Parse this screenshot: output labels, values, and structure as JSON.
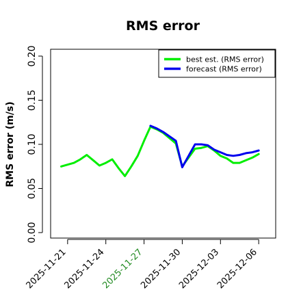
{
  "chart_data": {
    "type": "line",
    "title": "RMS error",
    "xlabel": "",
    "ylabel": "RMS error (m/s)",
    "ylim": [
      0,
      0.21
    ],
    "yticks": [
      "0.00",
      "0.05",
      "0.10",
      "0.15",
      "0.20"
    ],
    "ytick_values": [
      0.0,
      0.05,
      0.1,
      0.15,
      0.2
    ],
    "xlim": [
      "2025-11-19T16:00",
      "2025-12-07T08:00"
    ],
    "xticks": [
      "2025-11-21",
      "2025-11-24",
      "2025-11-27",
      "2025-11-30",
      "2025-12-03",
      "2025-12-06"
    ],
    "highlight_tick": "2025-11-27",
    "highlight_color": "#228B22",
    "grid": false,
    "legend_position": "top-right",
    "x": [
      "2025-11-20T12:00",
      "2025-11-21T00:00",
      "2025-11-21T12:00",
      "2025-11-22T00:00",
      "2025-11-22T12:00",
      "2025-11-23T00:00",
      "2025-11-23T12:00",
      "2025-11-24T00:00",
      "2025-11-24T12:00",
      "2025-11-25T00:00",
      "2025-11-25T12:00",
      "2025-11-26T00:00",
      "2025-11-26T12:00",
      "2025-11-27T00:00",
      "2025-11-27T12:00",
      "2025-11-28T00:00",
      "2025-11-28T12:00",
      "2025-11-29T00:00",
      "2025-11-29T12:00",
      "2025-11-30T00:00",
      "2025-11-30T12:00",
      "2025-12-01T00:00",
      "2025-12-01T12:00",
      "2025-12-02T00:00",
      "2025-12-02T12:00",
      "2025-12-03T00:00",
      "2025-12-03T12:00",
      "2025-12-04T00:00",
      "2025-12-04T12:00",
      "2025-12-05T00:00",
      "2025-12-05T12:00",
      "2025-12-06T00:00"
    ],
    "series": [
      {
        "name": "best est. (RMS error)",
        "color": "#00ee00",
        "values": [
          0.075,
          0.077,
          0.079,
          0.083,
          0.088,
          0.082,
          0.076,
          0.079,
          0.083,
          0.073,
          0.064,
          0.075,
          0.087,
          0.104,
          0.12,
          0.117,
          0.113,
          0.107,
          0.101,
          0.075,
          0.085,
          0.095,
          0.096,
          0.098,
          0.093,
          0.087,
          0.084,
          0.079,
          0.079,
          0.082,
          0.085,
          0.089
        ]
      },
      {
        "name": "forecast (RMS error)",
        "color": "#0000ee",
        "values": [
          null,
          null,
          null,
          null,
          null,
          null,
          null,
          null,
          null,
          null,
          null,
          null,
          null,
          null,
          0.121,
          0.118,
          0.114,
          0.109,
          0.104,
          0.074,
          0.087,
          0.1,
          0.1,
          0.099,
          0.094,
          0.091,
          0.088,
          0.087,
          0.088,
          0.09,
          0.091,
          0.093
        ]
      }
    ]
  }
}
